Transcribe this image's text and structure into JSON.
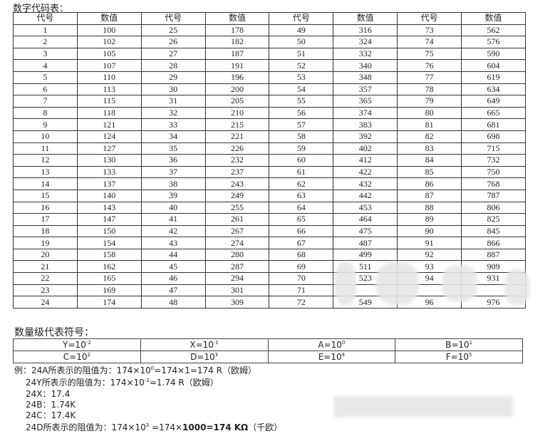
{
  "title": "数字代码表：",
  "headers": [
    "代号",
    "数值",
    "代号",
    "数值",
    "代号",
    "数值",
    "代号",
    "数值"
  ],
  "rows": [
    [
      "1",
      "100",
      "25",
      "178",
      "49",
      "316",
      "73",
      "562"
    ],
    [
      "2",
      "102",
      "26",
      "182",
      "50",
      "324",
      "74",
      "576"
    ],
    [
      "3",
      "105",
      "27",
      "187",
      "51",
      "332",
      "75",
      "590"
    ],
    [
      "4",
      "107",
      "28",
      "191",
      "52",
      "340",
      "76",
      "604"
    ],
    [
      "5",
      "110",
      "29",
      "196",
      "53",
      "348",
      "77",
      "619"
    ],
    [
      "6",
      "113",
      "30",
      "200",
      "54",
      "357",
      "78",
      "634"
    ],
    [
      "7",
      "115",
      "31",
      "205",
      "55",
      "365",
      "79",
      "649"
    ],
    [
      "8",
      "118",
      "32",
      "210",
      "56",
      "374",
      "80",
      "665"
    ],
    [
      "9",
      "121",
      "33",
      "215",
      "57",
      "383",
      "81",
      "681"
    ],
    [
      "10",
      "124",
      "34",
      "221",
      "58",
      "392",
      "82",
      "698"
    ],
    [
      "11",
      "127",
      "35",
      "226",
      "59",
      "402",
      "83",
      "715"
    ],
    [
      "12",
      "130",
      "36",
      "232",
      "60",
      "412",
      "84",
      "732"
    ],
    [
      "13",
      "133",
      "37",
      "237",
      "61",
      "422",
      "85",
      "750"
    ],
    [
      "14",
      "137",
      "38",
      "243",
      "62",
      "432",
      "86",
      "768"
    ],
    [
      "15",
      "140",
      "39",
      "249",
      "63",
      "442",
      "87",
      "787"
    ],
    [
      "16",
      "143",
      "40",
      "255",
      "64",
      "453",
      "88",
      "806"
    ],
    [
      "17",
      "147",
      "41",
      "261",
      "65",
      "464",
      "89",
      "825"
    ],
    [
      "18",
      "150",
      "42",
      "267",
      "66",
      "475",
      "90",
      "845"
    ],
    [
      "19",
      "154",
      "43",
      "274",
      "67",
      "487",
      "91",
      "866"
    ],
    [
      "20",
      "158",
      "44",
      "280",
      "68",
      "499",
      "92",
      "887"
    ],
    [
      "21",
      "162",
      "45",
      "287",
      "69",
      "511",
      "93",
      "909"
    ],
    [
      "22",
      "165",
      "46",
      "294",
      "70",
      "523",
      "94",
      "931"
    ],
    [
      "23",
      "169",
      "47",
      "301",
      "71",
      "",
      "",
      ""
    ],
    [
      "24",
      "174",
      "48",
      "309",
      "72",
      "549",
      "96",
      "976"
    ]
  ],
  "magnitude_title": "数量级代表符号：",
  "magnitude": [
    [
      {
        "l": "Y=10",
        "e": "-2"
      },
      {
        "l": "X=10",
        "e": "-1"
      },
      {
        "l": "A=10",
        "e": "0"
      },
      {
        "l": "B=10",
        "e": "1"
      }
    ],
    [
      {
        "l": "C=10",
        "e": "2"
      },
      {
        "l": "D=10",
        "e": "3"
      },
      {
        "l": "E=10",
        "e": "4"
      },
      {
        "l": "F=10",
        "e": "5"
      }
    ]
  ],
  "examples": {
    "l1a": "例：24A所表示的阻值为：174×10",
    "l1e": "0",
    "l1b": "=174×1=174 R（欧姆）",
    "l2a": "24Y所表示的阻值为：174×10",
    "l2e": "-2",
    "l2b": "=1.74 R（欧姆）",
    "l3": "24X：17.4",
    "l4": "24B：1.74K",
    "l5": "24C：17.4K",
    "l6a": "24D所表示的阻值为：174×10",
    "l6e": "3",
    "l6b": " =174×",
    "l6c": "1000=174 KΩ",
    "l6d": "（千欧）"
  }
}
